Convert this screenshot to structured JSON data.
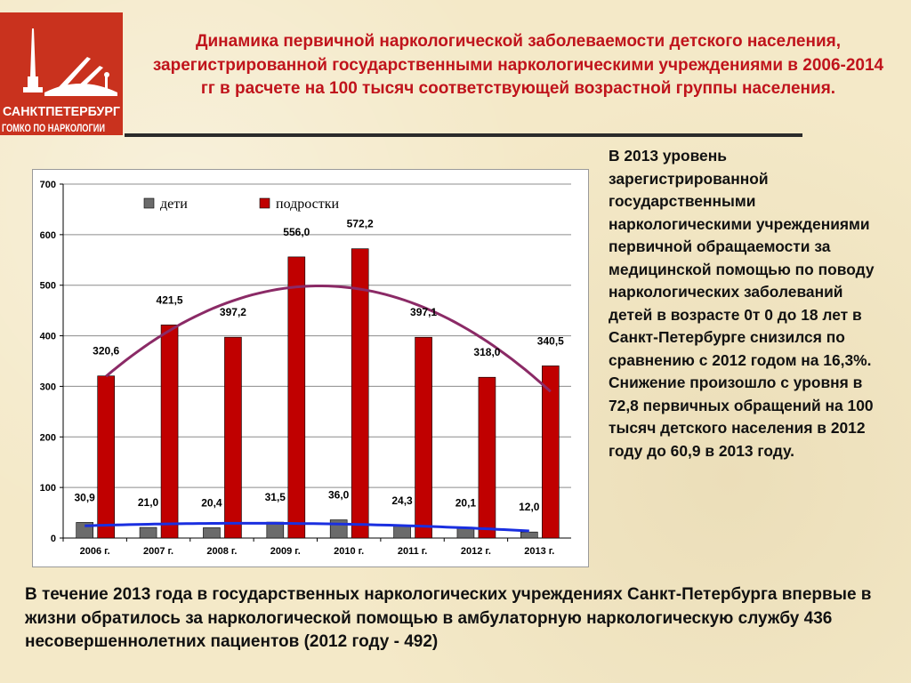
{
  "logo": {
    "city_text": "САНКТПЕТЕРБУРГ",
    "org_text": "ГОМКО ПО НАРКОЛОГИИ",
    "color": "#c9321e"
  },
  "title": "Динамика первичной наркологической заболеваемости детского населения, зарегистрированной государственными наркологическими учреждениями в 2006-2014 гг в расчете на 100 тысяч соответствующей возрастной группы населения.",
  "side_text": "В 2013  уровень зарегистрированной государственными наркологическими учреждениями первичной обращаемости за медицинской помощью по поводу наркологических заболеваний детей в возрасте 0т 0 до 18 лет в Санкт-Петербурге снизился по сравнению с 2012 годом на 16,3%. Снижение произошло с уровня в 72,8 первичных обращений на 100 тысяч детского населения в 2012 году до 60,9 в 2013 году.",
  "bottom_text": " В течение 2013 года в государственных наркологических учреждениях Санкт-Петербурга впервые в жизни обратилось за наркологической помощью в амбулаторную наркологическую службу 436 несовершеннолетних пациентов (2012 году - 492)",
  "chart_data": {
    "type": "bar",
    "categories": [
      "2006 г.",
      "2007 г.",
      "2008 г.",
      "2009 г.",
      "2010 г.",
      "2011 г.",
      "2012 г.",
      "2013 г."
    ],
    "series": [
      {
        "name": "дети",
        "values": [
          30.9,
          21.0,
          20.4,
          31.5,
          36.0,
          24.3,
          20.1,
          12.0
        ],
        "labels": [
          "30,9",
          "21,0",
          "20,4",
          "31,5",
          "36,0",
          "24,3",
          "20,1",
          "12,0"
        ],
        "color": "#6b6b6b"
      },
      {
        "name": "подростки",
        "values": [
          320.6,
          421.5,
          397.2,
          556.0,
          572.2,
          397.1,
          318.0,
          340.5
        ],
        "labels": [
          "320,6",
          "421,5",
          "397,2",
          "556,0",
          "572,2",
          "397,1",
          "318,0",
          "340,5"
        ],
        "color": "#c00000"
      }
    ],
    "trendlines": [
      {
        "series": "подростки",
        "type": "polynomial",
        "color": "#8b2a66"
      },
      {
        "series": "дети",
        "type": "polynomial",
        "color": "#1a2fe0"
      }
    ],
    "yticks": [
      "0",
      "100",
      "200",
      "300",
      "400",
      "500",
      "600",
      "700"
    ],
    "ylim": [
      0,
      700
    ],
    "grid": true,
    "legend": "top"
  }
}
